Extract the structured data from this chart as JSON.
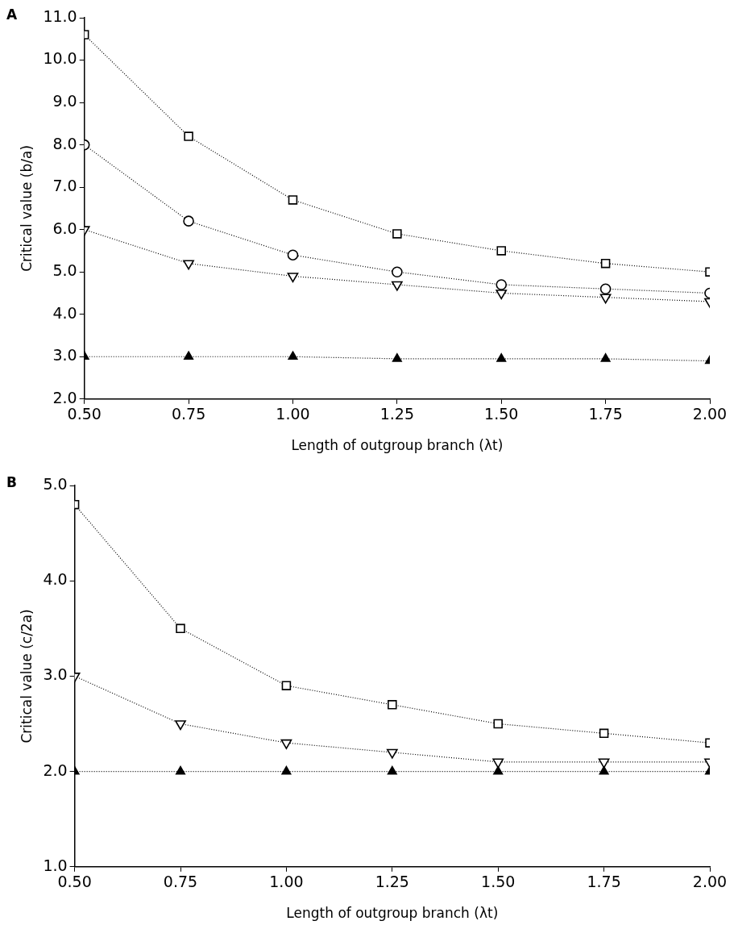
{
  "chart_data": [
    {
      "type": "line",
      "title": "A",
      "xlabel": "Length of outgroup branch (λt)",
      "ylabel": "Critical value (b/a)",
      "line_style": "dotted",
      "grid": false,
      "legend": false,
      "x": [
        0.5,
        0.75,
        1.0,
        1.25,
        1.5,
        1.75,
        2.0
      ],
      "xlim": [
        0.5,
        2.0
      ],
      "xticks": [
        {
          "value": 0.5,
          "label": "0.50"
        },
        {
          "value": 0.75,
          "label": "0.75"
        },
        {
          "value": 1.0,
          "label": "1.00"
        },
        {
          "value": 1.25,
          "label": "1.25"
        },
        {
          "value": 1.5,
          "label": "1.50"
        },
        {
          "value": 1.75,
          "label": "1.75"
        },
        {
          "value": 2.0,
          "label": "2.00"
        }
      ],
      "ylim": [
        2,
        11
      ],
      "yticks": [
        {
          "value": 2,
          "label": "2.0"
        },
        {
          "value": 3,
          "label": "3.0"
        },
        {
          "value": 4,
          "label": "4.0"
        },
        {
          "value": 5,
          "label": "5.0"
        },
        {
          "value": 6,
          "label": "6.0"
        },
        {
          "value": 7,
          "label": "7.0"
        },
        {
          "value": 8,
          "label": "8.0"
        },
        {
          "value": 9,
          "label": "9.0"
        },
        {
          "value": 10,
          "label": "10.0"
        },
        {
          "value": 11,
          "label": "11.0"
        }
      ],
      "series": [
        {
          "color": "#000000",
          "marker": "square",
          "values": [
            10.6,
            8.2,
            6.7,
            5.9,
            5.5,
            5.2,
            5.0
          ]
        },
        {
          "color": "#000000",
          "marker": "circle",
          "values": [
            8.0,
            6.2,
            5.4,
            5.0,
            4.7,
            4.6,
            4.5
          ]
        },
        {
          "color": "#000000",
          "marker": "triangle-down",
          "values": [
            6.0,
            5.2,
            4.9,
            4.7,
            4.5,
            4.4,
            4.3
          ]
        },
        {
          "color": "#000000",
          "marker": "triangle",
          "values": [
            3.0,
            3.0,
            3.0,
            2.95,
            2.95,
            2.95,
            2.9
          ]
        }
      ]
    },
    {
      "type": "line",
      "title": "B",
      "xlabel": "Length of outgroup branch (λt)",
      "ylabel": "Critical value (c/2a)",
      "line_style": "dotted",
      "grid": false,
      "legend": false,
      "x": [
        0.5,
        0.75,
        1.0,
        1.25,
        1.5,
        1.75,
        2.0
      ],
      "xlim": [
        0.5,
        2.0
      ],
      "xticks": [
        {
          "value": 0.5,
          "label": "0.50"
        },
        {
          "value": 0.75,
          "label": "0.75"
        },
        {
          "value": 1.0,
          "label": "1.00"
        },
        {
          "value": 1.25,
          "label": "1.25"
        },
        {
          "value": 1.5,
          "label": "1.50"
        },
        {
          "value": 1.75,
          "label": "1.75"
        },
        {
          "value": 2.0,
          "label": "2.00"
        }
      ],
      "ylim": [
        1,
        5
      ],
      "yticks": [
        {
          "value": 1,
          "label": "1.0"
        },
        {
          "value": 2,
          "label": "2.0"
        },
        {
          "value": 3,
          "label": "3.0"
        },
        {
          "value": 4,
          "label": "4.0"
        },
        {
          "value": 5,
          "label": "5.0"
        }
      ],
      "series": [
        {
          "color": "#000000",
          "marker": "square",
          "values": [
            4.8,
            3.5,
            2.9,
            2.7,
            2.5,
            2.4,
            2.3
          ]
        },
        {
          "color": "#000000",
          "marker": "triangle-down",
          "values": [
            3.0,
            2.5,
            2.3,
            2.2,
            2.1,
            2.1,
            2.1
          ]
        },
        {
          "color": "#000000",
          "marker": "triangle",
          "values": [
            2.0,
            2.0,
            2.0,
            2.0,
            2.0,
            2.0,
            2.0
          ]
        }
      ]
    }
  ]
}
